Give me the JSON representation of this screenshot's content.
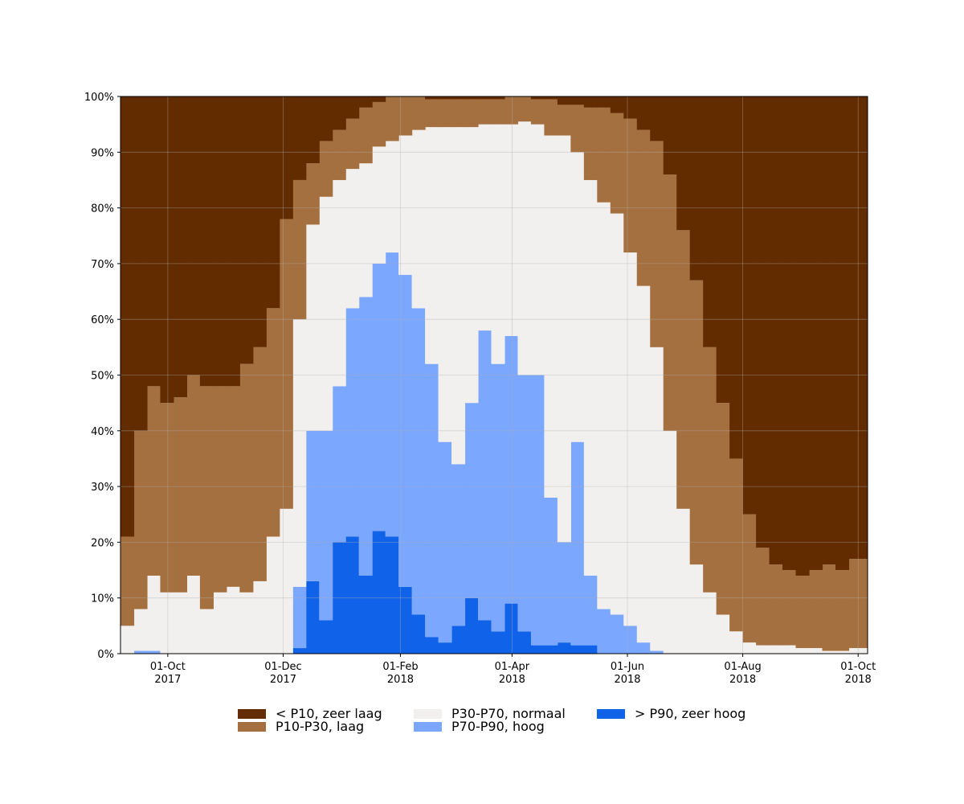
{
  "chart_data": {
    "type": "stacked-step-area",
    "x": [
      "2017-09-06",
      "2017-09-13",
      "2017-09-20",
      "2017-09-27",
      "2017-10-04",
      "2017-10-11",
      "2017-10-18",
      "2017-10-25",
      "2017-11-01",
      "2017-11-08",
      "2017-11-15",
      "2017-11-22",
      "2017-11-29",
      "2017-12-06",
      "2017-12-13",
      "2017-12-20",
      "2017-12-27",
      "2018-01-03",
      "2018-01-10",
      "2018-01-17",
      "2018-01-24",
      "2018-01-31",
      "2018-02-07",
      "2018-02-14",
      "2018-02-21",
      "2018-02-28",
      "2018-03-07",
      "2018-03-14",
      "2018-03-21",
      "2018-03-28",
      "2018-04-04",
      "2018-04-11",
      "2018-04-18",
      "2018-04-25",
      "2018-05-02",
      "2018-05-09",
      "2018-05-16",
      "2018-05-23",
      "2018-05-30",
      "2018-06-06",
      "2018-06-13",
      "2018-06-20",
      "2018-06-27",
      "2018-07-04",
      "2018-07-11",
      "2018-07-18",
      "2018-07-25",
      "2018-08-01",
      "2018-08-08",
      "2018-08-15",
      "2018-08-22",
      "2018-08-29",
      "2018-09-05",
      "2018-09-12",
      "2018-09-19",
      "2018-09-26",
      "2018-10-03"
    ],
    "series": [
      {
        "name": "< P10, zeer laag",
        "color": "#632c00",
        "values": [
          79,
          60,
          52,
          55,
          54,
          50,
          52,
          52,
          52,
          48,
          45,
          38,
          22,
          15,
          12,
          8,
          6,
          4,
          2,
          1,
          0,
          0,
          0,
          0.5,
          0.5,
          0.5,
          0.5,
          0.5,
          0.5,
          0,
          0,
          0.5,
          0.5,
          1.5,
          1.5,
          2,
          2,
          3,
          4,
          6,
          8,
          14,
          24,
          33,
          45,
          55,
          65,
          75,
          81,
          84,
          85,
          86,
          85,
          84,
          85,
          83,
          83
        ]
      },
      {
        "name": "P10-P30, laag",
        "color": "#a5703f",
        "values": [
          16,
          32,
          34,
          34,
          35,
          36,
          40,
          37,
          36,
          41,
          42,
          41,
          52,
          25,
          11,
          10,
          9,
          9,
          10,
          8,
          8,
          7,
          6,
          5,
          5,
          5,
          5,
          4.5,
          4.5,
          5,
          4.5,
          4.5,
          6.5,
          5.5,
          8.5,
          13,
          17,
          18,
          24,
          28,
          37,
          46,
          50,
          51,
          44,
          38,
          31,
          23,
          17.5,
          14.5,
          13.5,
          13,
          14,
          15.5,
          14.5,
          16,
          16
        ]
      },
      {
        "name": "P30-P70, normaal",
        "color": "#f2f0ee",
        "values": [
          5,
          7.5,
          13.5,
          11,
          11,
          14,
          8,
          11,
          12,
          11,
          13,
          21,
          26,
          48,
          37,
          42,
          37,
          25,
          24,
          21,
          20,
          25,
          32,
          42.5,
          56.5,
          60.5,
          49.5,
          37,
          43,
          38,
          45.5,
          45,
          65,
          73,
          52,
          71,
          73,
          72,
          67,
          64,
          54.5,
          40,
          26,
          16,
          11,
          7,
          4,
          2,
          1.5,
          1.5,
          1.5,
          1,
          1,
          0.5,
          0.5,
          1,
          1
        ]
      },
      {
        "name": "P70-P90, hoog",
        "color": "#7ba7ff",
        "values": [
          0,
          0.5,
          0.5,
          0,
          0,
          0,
          0,
          0,
          0,
          0,
          0,
          0,
          0,
          11,
          27,
          34,
          28,
          41,
          50,
          48,
          51,
          56,
          55,
          49,
          36,
          29,
          35,
          52,
          48,
          48,
          46,
          48.5,
          26.5,
          18,
          36.5,
          12.5,
          8,
          7,
          5,
          2,
          0.5,
          0,
          0,
          0,
          0,
          0,
          0,
          0,
          0,
          0,
          0,
          0,
          0,
          0,
          0,
          0,
          0
        ]
      },
      {
        "name": "> P90, zeer hoog",
        "color": "#1062e8",
        "values": [
          0,
          0,
          0,
          0,
          0,
          0,
          0,
          0,
          0,
          0,
          0,
          0,
          0,
          1,
          13,
          6,
          20,
          21,
          14,
          22,
          21,
          12,
          7,
          3,
          2,
          5,
          10,
          6,
          4,
          9,
          4,
          1.5,
          1.5,
          2,
          1.5,
          1.5,
          0,
          0,
          0,
          0,
          0,
          0,
          0,
          0,
          0,
          0,
          0,
          0,
          0,
          0,
          0,
          0,
          0,
          0,
          0,
          0,
          0
        ]
      }
    ],
    "xlim": [
      "2017-09-06",
      "2018-10-06"
    ],
    "xticks": [
      {
        "value": "2017-10-01",
        "label": "01-Oct\n2017"
      },
      {
        "value": "2017-12-01",
        "label": "01-Dec\n2017"
      },
      {
        "value": "2018-02-01",
        "label": "01-Feb\n2018"
      },
      {
        "value": "2018-04-01",
        "label": "01-Apr\n2018"
      },
      {
        "value": "2018-06-01",
        "label": "01-Jun\n2018"
      },
      {
        "value": "2018-08-01",
        "label": "01-Aug\n2018"
      },
      {
        "value": "2018-10-01",
        "label": "01-Oct\n2018"
      }
    ],
    "ylim": [
      0,
      100
    ],
    "yticks": [
      {
        "value": 0,
        "label": "0%"
      },
      {
        "value": 10,
        "label": "10%"
      },
      {
        "value": 20,
        "label": "20%"
      },
      {
        "value": 30,
        "label": "30%"
      },
      {
        "value": 40,
        "label": "40%"
      },
      {
        "value": 50,
        "label": "50%"
      },
      {
        "value": 60,
        "label": "60%"
      },
      {
        "value": 70,
        "label": "70%"
      },
      {
        "value": 80,
        "label": "80%"
      },
      {
        "value": 90,
        "label": "90%"
      },
      {
        "value": 100,
        "label": "100%"
      }
    ],
    "grid": true
  }
}
